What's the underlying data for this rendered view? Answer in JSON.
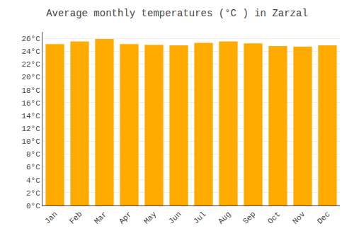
{
  "chart_data": {
    "type": "bar",
    "title": "Average monthly temperatures (°C ) in Zarzal",
    "categories": [
      "Jan",
      "Feb",
      "Mar",
      "Apr",
      "May",
      "Jun",
      "Jul",
      "Aug",
      "Sep",
      "Oct",
      "Nov",
      "Dec"
    ],
    "values": [
      25.1,
      25.5,
      25.9,
      25.1,
      25.0,
      24.9,
      25.3,
      25.5,
      25.2,
      24.8,
      24.7,
      24.9
    ],
    "color": "#FFAA00",
    "ylim": [
      0,
      27
    ],
    "yticks": [
      {
        "value": 0,
        "label": "0°C"
      },
      {
        "value": 2,
        "label": "2°C"
      },
      {
        "value": 4,
        "label": "4°C"
      },
      {
        "value": 6,
        "label": "6°C"
      },
      {
        "value": 8,
        "label": "8°C"
      },
      {
        "value": 10,
        "label": "10°C"
      },
      {
        "value": 12,
        "label": "12°C"
      },
      {
        "value": 14,
        "label": "14°C"
      },
      {
        "value": 16,
        "label": "16°C"
      },
      {
        "value": 18,
        "label": "18°C"
      },
      {
        "value": 20,
        "label": "20°C"
      },
      {
        "value": 22,
        "label": "22°C"
      },
      {
        "value": 24,
        "label": "24°C"
      },
      {
        "value": 26,
        "label": "26°C"
      }
    ],
    "grid": true
  }
}
